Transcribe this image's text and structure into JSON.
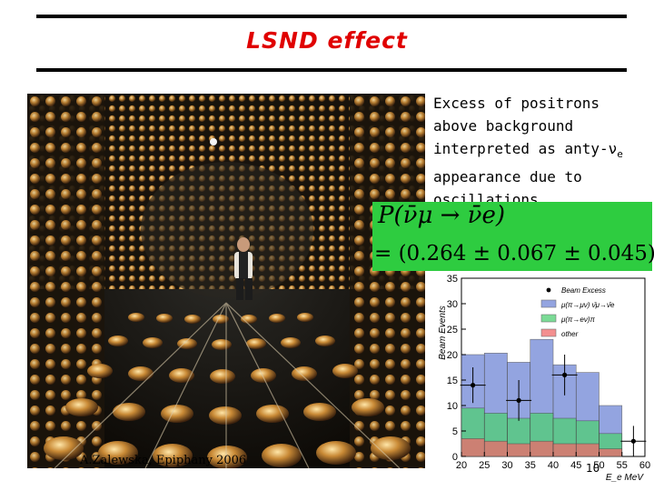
{
  "slide": {
    "title": "LSND effect",
    "description": {
      "line1": "Excess of positrons",
      "line2": "above background",
      "line3_prefix": "interpreted as anty-ν",
      "line3_sub": "e",
      "line4": "appearance due to",
      "line5": "oscillations"
    },
    "formula": {
      "line1": "P(ν̄μ → ν̄e)",
      "line2": "= (0.264 ± 0.067 ± 0.045)%"
    },
    "credit": "A.Zalewska, Epiphany 2006",
    "page_number": "10"
  },
  "colors": {
    "title": "#e00000",
    "formula_bg": "#2ecc40"
  },
  "chart_data": {
    "type": "bar",
    "xlabel": "E_e MeV",
    "ylabel": "Beam Events",
    "xlim": [
      20,
      60
    ],
    "ylim": [
      0,
      35
    ],
    "xticks": [
      20,
      25,
      30,
      35,
      40,
      45,
      50,
      55,
      60
    ],
    "yticks": [
      0,
      5,
      10,
      15,
      20,
      25,
      30,
      35
    ],
    "bins": [
      20,
      25,
      30,
      35,
      40,
      45,
      50,
      55,
      60
    ],
    "stack": [
      {
        "name": "μ(π→μν) ν̄μ→ν̄e",
        "fill": "#6f86d6",
        "values": [
          10.5,
          11.8,
          11.0,
          14.5,
          10.5,
          9.5,
          5.5,
          0
        ]
      },
      {
        "name": "μ(π→eν)π",
        "fill": "#4fcf74",
        "values": [
          6.0,
          5.5,
          5.0,
          5.5,
          5.0,
          4.5,
          3.0,
          0
        ]
      },
      {
        "name": "other",
        "fill": "#f06a6a",
        "values": [
          3.5,
          3.0,
          2.5,
          3.0,
          2.5,
          2.5,
          1.5,
          0
        ]
      }
    ],
    "beam_excess": {
      "name": "Beam Excess",
      "x": [
        22.5,
        32.5,
        42.5,
        57.5
      ],
      "y": [
        14.0,
        11.0,
        16.0,
        3.0
      ],
      "err": [
        3.5,
        4.0,
        4.0,
        3.0
      ]
    },
    "legend": [
      "Beam Excess",
      "μ(π→μν) ν̄μ→ν̄e",
      "μ(π→eν)π",
      "other"
    ]
  }
}
